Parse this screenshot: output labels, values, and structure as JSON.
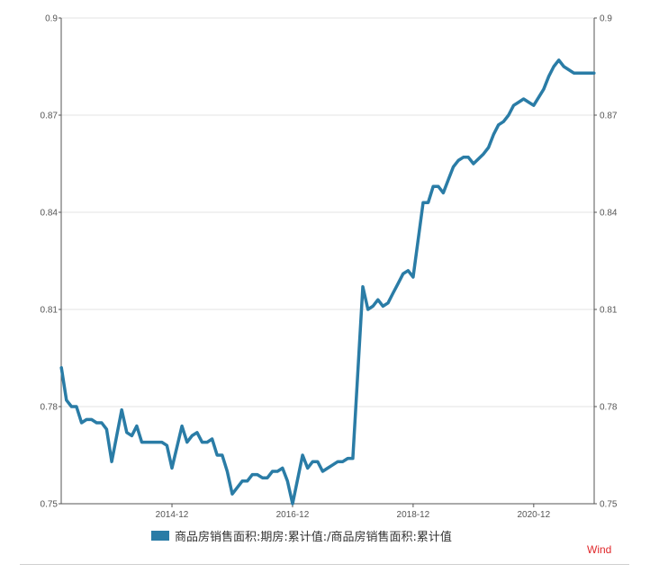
{
  "chart_data": {
    "type": "line",
    "title": "",
    "xlabel": "",
    "ylabel": "",
    "ylim": [
      0.75,
      0.9
    ],
    "yticks": [
      "0.75",
      "0.78",
      "0.81",
      "0.84",
      "0.87",
      "0.9"
    ],
    "xtick_labels": [
      {
        "label": "2014-12",
        "x": 2014.917
      },
      {
        "label": "2016-12",
        "x": 2016.917
      },
      {
        "label": "2018-12",
        "x": 2018.917
      },
      {
        "label": "2020-12",
        "x": 2020.917
      }
    ],
    "xlim": [
      2013.08,
      2021.92
    ],
    "grid": true,
    "legend_position": "bottom",
    "series": [
      {
        "name": "商品房销售面积:期房:累计值:/商品房销售面积:累计值",
        "color": "#2a7ca6",
        "x": [
          2013.083,
          2013.167,
          2013.25,
          2013.333,
          2013.417,
          2013.5,
          2013.583,
          2013.667,
          2013.75,
          2013.833,
          2013.917,
          2014.083,
          2014.167,
          2014.25,
          2014.333,
          2014.417,
          2014.5,
          2014.583,
          2014.667,
          2014.75,
          2014.833,
          2014.917,
          2015.083,
          2015.167,
          2015.25,
          2015.333,
          2015.417,
          2015.5,
          2015.583,
          2015.667,
          2015.75,
          2015.833,
          2015.917,
          2016.083,
          2016.167,
          2016.25,
          2016.333,
          2016.417,
          2016.5,
          2016.583,
          2016.667,
          2016.75,
          2016.833,
          2016.917,
          2017.083,
          2017.167,
          2017.25,
          2017.333,
          2017.417,
          2017.5,
          2017.583,
          2017.667,
          2017.75,
          2017.833,
          2017.917,
          2018.083,
          2018.167,
          2018.25,
          2018.333,
          2018.417,
          2018.5,
          2018.583,
          2018.667,
          2018.75,
          2018.833,
          2018.917,
          2019.083,
          2019.167,
          2019.25,
          2019.333,
          2019.417,
          2019.5,
          2019.583,
          2019.667,
          2019.75,
          2019.833,
          2019.917,
          2020.083,
          2020.167,
          2020.25,
          2020.333,
          2020.417,
          2020.5,
          2020.583,
          2020.667,
          2020.75,
          2020.833,
          2020.917,
          2021.083,
          2021.167,
          2021.25,
          2021.333,
          2021.417,
          2021.5,
          2021.583,
          2021.667,
          2021.75,
          2021.833,
          2021.917
        ],
        "values": [
          0.792,
          0.782,
          0.78,
          0.78,
          0.775,
          0.776,
          0.776,
          0.775,
          0.775,
          0.773,
          0.763,
          0.779,
          0.772,
          0.771,
          0.774,
          0.769,
          0.769,
          0.769,
          0.769,
          0.769,
          0.768,
          0.761,
          0.774,
          0.769,
          0.771,
          0.772,
          0.769,
          0.769,
          0.77,
          0.765,
          0.765,
          0.76,
          0.753,
          0.757,
          0.757,
          0.759,
          0.759,
          0.758,
          0.758,
          0.76,
          0.76,
          0.761,
          0.757,
          0.75,
          0.765,
          0.761,
          0.763,
          0.763,
          0.76,
          0.761,
          0.762,
          0.763,
          0.763,
          0.764,
          0.764,
          0.817,
          0.81,
          0.811,
          0.813,
          0.811,
          0.812,
          0.815,
          0.818,
          0.821,
          0.822,
          0.82,
          0.843,
          0.843,
          0.848,
          0.848,
          0.846,
          0.85,
          0.854,
          0.856,
          0.857,
          0.857,
          0.855,
          0.858,
          0.86,
          0.864,
          0.867,
          0.868,
          0.87,
          0.873,
          0.874,
          0.875,
          0.874,
          0.873,
          0.878,
          0.882,
          0.885,
          0.887,
          0.885,
          0.884,
          0.883,
          0.883,
          0.883,
          0.883,
          0.883
        ]
      }
    ]
  },
  "legend": {
    "label": "商品房销售面积:期房:累计值:/商品房销售面积:累计值",
    "color": "#2a7ca6"
  },
  "source": {
    "label": "Wind",
    "color": "#e0282b"
  }
}
